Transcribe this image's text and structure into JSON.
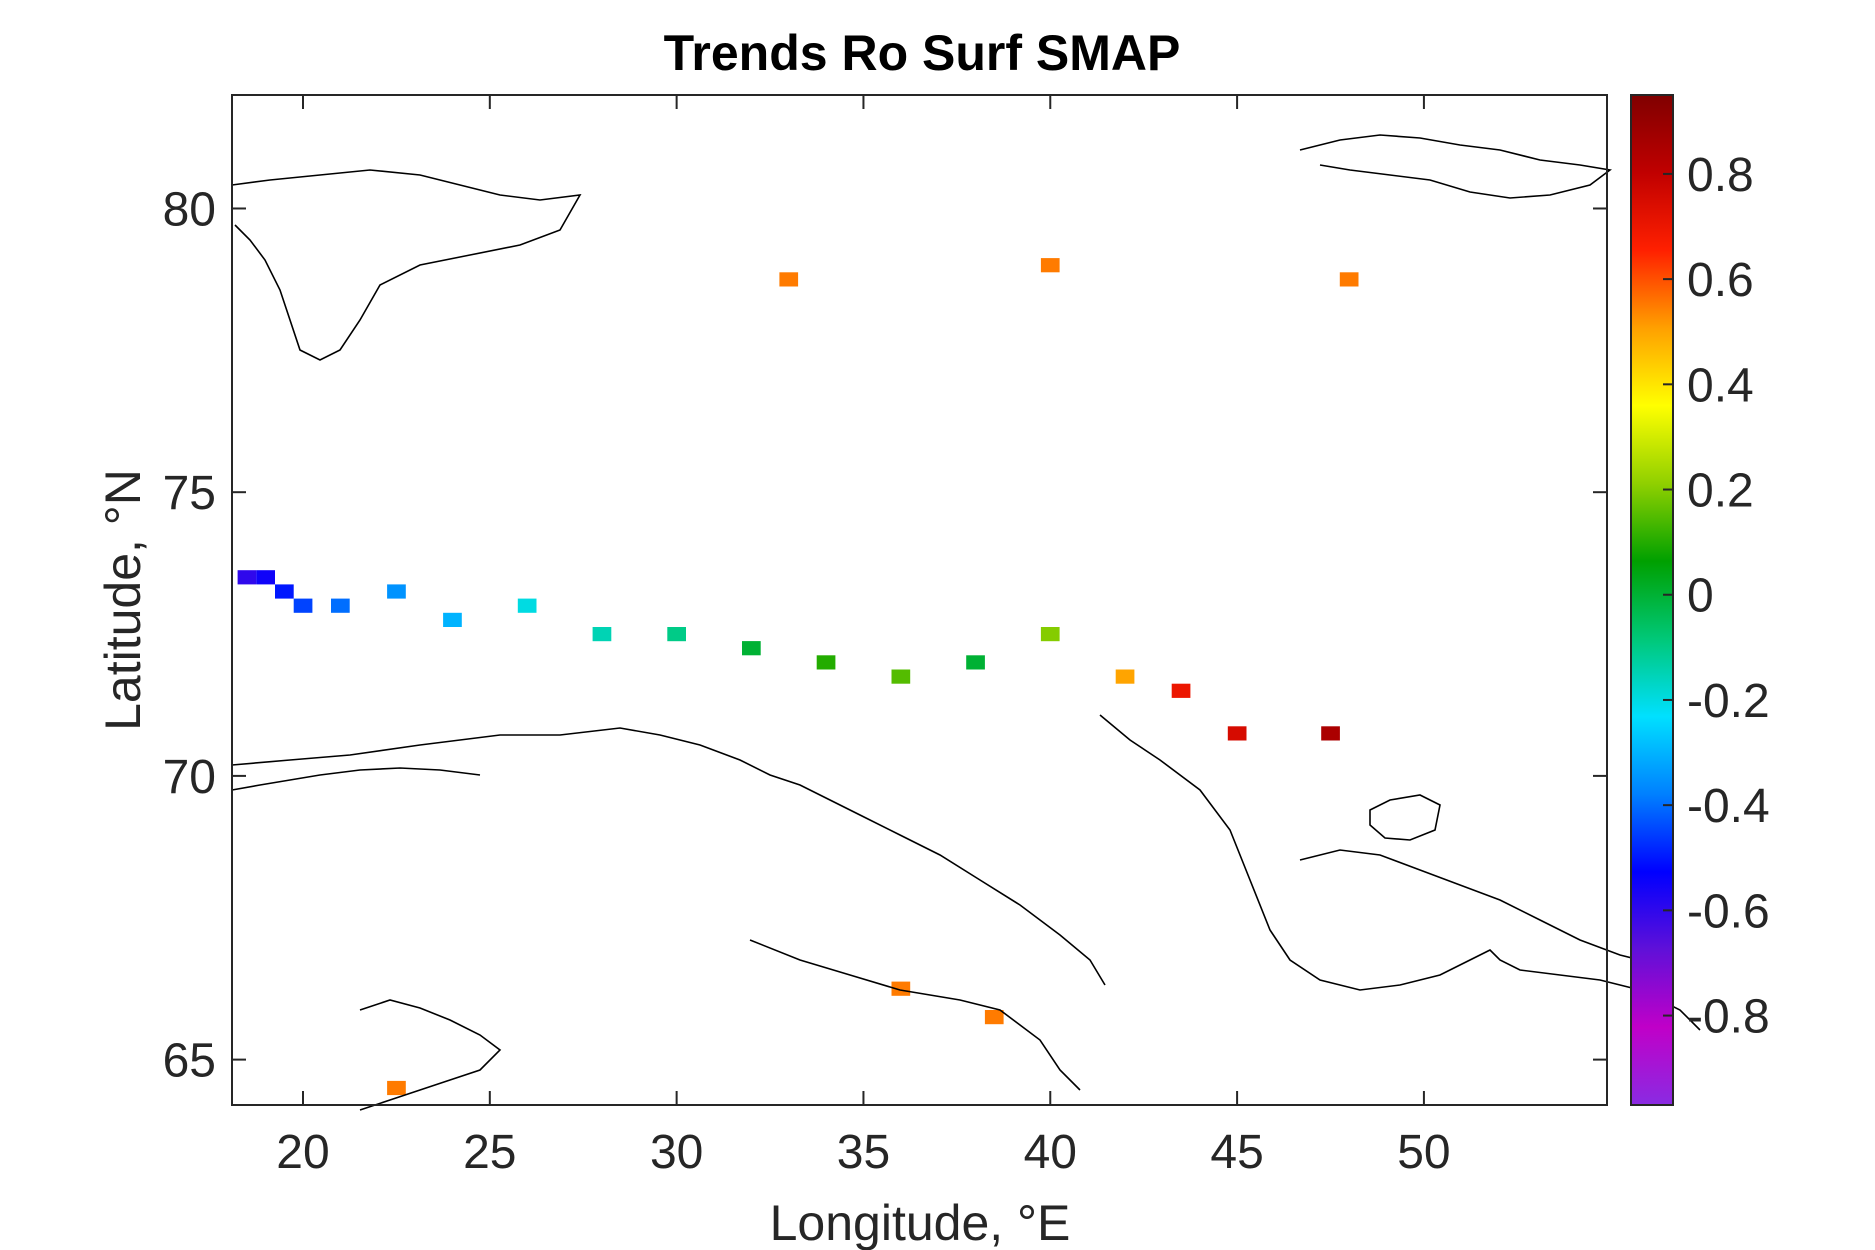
{
  "chart_data": {
    "type": "heatmap",
    "title": "Trends Ro Surf SMAP",
    "xlabel": "Longitude, °E",
    "ylabel": "Latitude, °N",
    "xlim": [
      18.1,
      54.9
    ],
    "ylim": [
      64.2,
      82
    ],
    "x_ticks": [
      20,
      25,
      30,
      35,
      40,
      45,
      50
    ],
    "y_ticks": [
      65,
      70,
      75,
      80
    ],
    "colorbar": {
      "range": [
        -0.97,
        0.95
      ],
      "ticks": [
        -0.8,
        -0.6,
        -0.4,
        -0.2,
        0,
        0.2,
        0.4,
        0.6,
        0.8
      ],
      "tick_labels": [
        "-0.8",
        "-0.6",
        "-0.4",
        "-0.2",
        "0",
        "0.2",
        "0.4",
        "0.6",
        "0.8"
      ],
      "colormap": [
        "#8a2be2",
        "#c000c8",
        "#6010d8",
        "#0000ff",
        "#0080ff",
        "#00e0ff",
        "#00c878",
        "#00a000",
        "#90d000",
        "#ffff00",
        "#ffa000",
        "#ff2000",
        "#c00000",
        "#800000"
      ]
    },
    "grid": false,
    "grid_cell_deg": {
      "lon": 0.5,
      "lat": 0.25
    },
    "cells": [
      [
        18.5,
        73.5,
        -0.6
      ],
      [
        19.0,
        73.5,
        -0.55
      ],
      [
        19.5,
        73.25,
        -0.5
      ],
      [
        20.0,
        73.0,
        -0.45
      ],
      [
        21.0,
        73.0,
        -0.4
      ],
      [
        22.5,
        73.25,
        -0.35
      ],
      [
        24.0,
        72.75,
        -0.3
      ],
      [
        26.0,
        73.0,
        -0.2
      ],
      [
        28.0,
        72.5,
        -0.15
      ],
      [
        30.0,
        72.5,
        -0.1
      ],
      [
        32.0,
        72.25,
        0.0
      ],
      [
        34.0,
        72.0,
        0.1
      ],
      [
        36.0,
        71.75,
        0.15
      ],
      [
        38.0,
        72.0,
        0.0
      ],
      [
        40.0,
        72.5,
        0.2
      ],
      [
        42.0,
        71.75,
        0.5
      ],
      [
        43.5,
        71.5,
        0.7
      ],
      [
        45.0,
        70.75,
        0.75
      ],
      [
        47.5,
        70.75,
        0.85
      ],
      [
        33.0,
        78.75,
        0.55
      ],
      [
        40.0,
        79.0,
        0.55
      ],
      [
        48.0,
        78.75,
        0.55
      ],
      [
        22.5,
        64.5,
        0.55
      ],
      [
        36.0,
        66.25,
        0.55
      ],
      [
        38.5,
        65.75,
        0.55
      ]
    ],
    "annotations": []
  }
}
